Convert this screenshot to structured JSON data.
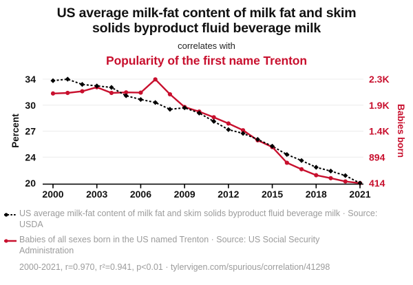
{
  "header": {
    "title": "US average milk-fat content of milk fat and skim solids byproduct fluid beverage milk",
    "subtitle": "correlates with",
    "red_title": "Popularity of the first name Trenton"
  },
  "colors": {
    "accent_red": "#c8102e",
    "series_black": "#000000",
    "legend_grey": "#9b9b9b",
    "gridline": "#ececec",
    "axis_line": "#000000",
    "tick_text": "#111111"
  },
  "chart_data": {
    "type": "line",
    "x": [
      2000,
      2001,
      2002,
      2003,
      2004,
      2005,
      2006,
      2007,
      2008,
      2009,
      2010,
      2011,
      2012,
      2013,
      2014,
      2015,
      2016,
      2017,
      2018,
      2019,
      2020,
      2021
    ],
    "x_tick_labels": [
      "2000",
      "2003",
      "2006",
      "2009",
      "2012",
      "2015",
      "2018",
      "2021"
    ],
    "left_axis": {
      "label": "Percent",
      "tick_labels": [
        "34",
        "30",
        "27",
        "24",
        "20"
      ],
      "min": 20.1,
      "max": 33.9
    },
    "right_axis": {
      "label": "Babies born",
      "tick_labels": [
        "2.3K",
        "1.9K",
        "1.4K",
        "894",
        "414"
      ],
      "min": 414,
      "max": 2334
    },
    "grid": true,
    "legend_position": "bottom",
    "series": [
      {
        "name": "US average milk-fat content of milk fat and skim solids byproduct fluid beverage milk",
        "axis": "left",
        "color": "#000000",
        "line_style": "dashed",
        "marker": "diamond",
        "values": [
          33.7,
          33.9,
          33.2,
          33.0,
          32.8,
          31.7,
          31.2,
          30.8,
          29.9,
          30.1,
          29.4,
          28.3,
          27.2,
          26.7,
          25.9,
          25.0,
          23.9,
          23.1,
          22.2,
          21.7,
          21.1,
          20.1
        ]
      },
      {
        "name": "Babies of all sexes born in the US named Trenton",
        "axis": "right",
        "color": "#c8102e",
        "line_style": "solid",
        "marker": "circle",
        "values": [
          2070,
          2080,
          2110,
          2185,
          2080,
          2090,
          2085,
          2330,
          2055,
          1820,
          1735,
          1630,
          1515,
          1390,
          1205,
          1080,
          790,
          670,
          560,
          505,
          445,
          414
        ]
      }
    ]
  },
  "legend": {
    "items": [
      {
        "marker": "black-dashed-dot",
        "label": "US average milk-fat content of milk fat and skim solids byproduct fluid beverage milk · Source: USDA"
      },
      {
        "marker": "red-solid-dot",
        "label": "Babies of all sexes born in the US named Trenton · Source: US Social Security Administration"
      }
    ],
    "footnote": "2000-2021, r=0.970, r²=0.941, p<0.01 · tylervigen.com/spurious/correlation/41298"
  }
}
